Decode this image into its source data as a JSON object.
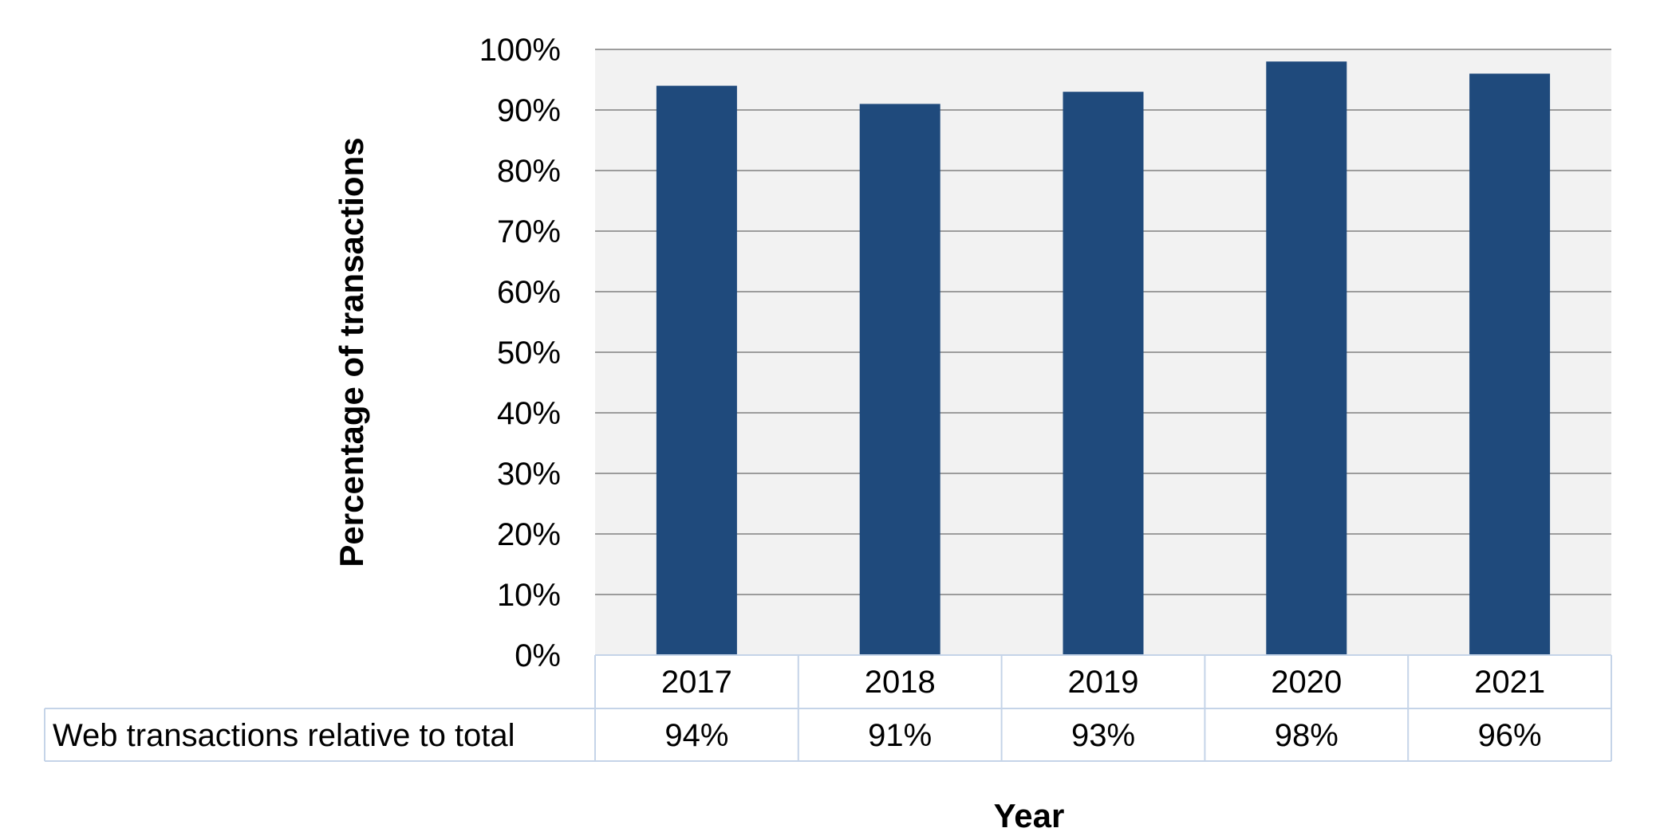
{
  "chart_data": {
    "type": "bar",
    "categories": [
      "2017",
      "2018",
      "2019",
      "2020",
      "2021"
    ],
    "series": [
      {
        "name": "Web transactions relative to total",
        "values": [
          94,
          91,
          93,
          98,
          96
        ],
        "value_labels": [
          "94%",
          "91%",
          "93%",
          "98%",
          "96%"
        ]
      }
    ],
    "xlabel": "Year",
    "ylabel": "Percentage of transactions",
    "ylim": [
      0,
      100
    ],
    "yticks": [
      0,
      10,
      20,
      30,
      40,
      50,
      60,
      70,
      80,
      90,
      100
    ],
    "ytick_labels": [
      "0%",
      "10%",
      "20%",
      "30%",
      "40%",
      "50%",
      "60%",
      "70%",
      "80%",
      "90%",
      "100%"
    ],
    "grid": true,
    "legend": "data-table-below",
    "colors": {
      "bar": "#1F4A7C",
      "plot_background": "#F2F2F2",
      "grid": "#7F7F7F",
      "table_border": "#C5D4E8"
    }
  }
}
